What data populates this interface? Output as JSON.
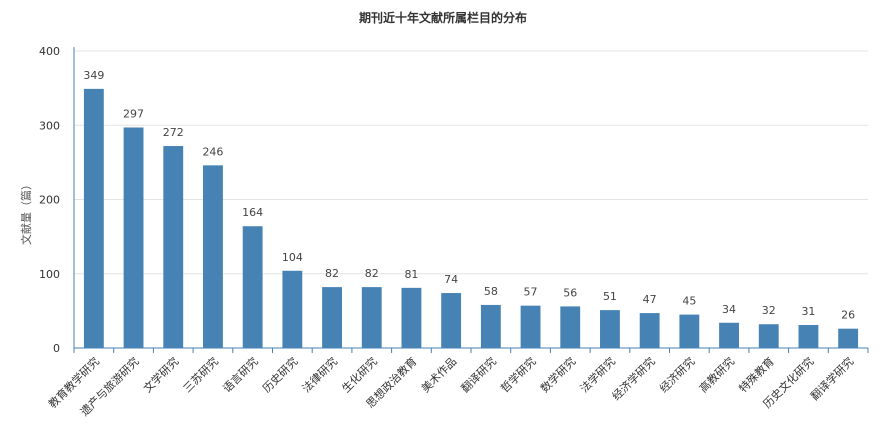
{
  "chart_data": {
    "type": "bar",
    "title": "期刊近十年文献所属栏目的分布",
    "xlabel": "",
    "ylabel": "文献量（篇）",
    "ylim": [
      0,
      400
    ],
    "yticks": [
      0,
      100,
      200,
      300,
      400
    ],
    "grid": true,
    "legend": "none",
    "bar_color": "#4682b4",
    "categories": [
      "教育教学研究",
      "遗产与旅游研究",
      "文学研究",
      "三苏研究",
      "语言研究",
      "历史研究",
      "法律研究",
      "生化研究",
      "思想政治教育",
      "美术作品",
      "翻译研究",
      "哲学研究",
      "数学研究",
      "法学研究",
      "经济学研究",
      "经济研究",
      "高教研究",
      "特殊教育",
      "历史文化研究",
      "翻译学研究"
    ],
    "values": [
      349,
      297,
      272,
      246,
      164,
      104,
      82,
      82,
      81,
      74,
      58,
      57,
      56,
      51,
      47,
      45,
      34,
      32,
      31,
      26
    ]
  }
}
